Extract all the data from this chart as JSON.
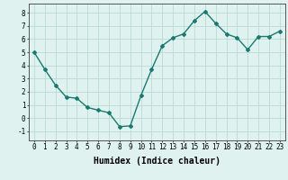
{
  "x": [
    0,
    1,
    2,
    3,
    4,
    5,
    6,
    7,
    8,
    9,
    10,
    11,
    12,
    13,
    14,
    15,
    16,
    17,
    18,
    19,
    20,
    21,
    22,
    23
  ],
  "y": [
    5.0,
    3.7,
    2.5,
    1.6,
    1.5,
    0.8,
    0.6,
    0.4,
    -0.65,
    -0.6,
    1.7,
    3.7,
    5.5,
    6.1,
    6.4,
    7.4,
    8.1,
    7.2,
    6.4,
    6.1,
    5.2,
    6.2,
    6.2,
    6.6
  ],
  "line_color": "#1a7a6e",
  "marker": "D",
  "marker_size": 2.0,
  "line_width": 1.0,
  "xlabel": "Humidex (Indice chaleur)",
  "xlabel_fontsize": 7,
  "tick_fontsize": 5.5,
  "ylabel_ticks": [
    -1,
    0,
    1,
    2,
    3,
    4,
    5,
    6,
    7,
    8
  ],
  "xlim": [
    -0.5,
    23.5
  ],
  "ylim": [
    -1.7,
    8.7
  ],
  "bg_color": "#dff2f0",
  "grid_color": "#b8dbd8",
  "axes_color": "#555555"
}
